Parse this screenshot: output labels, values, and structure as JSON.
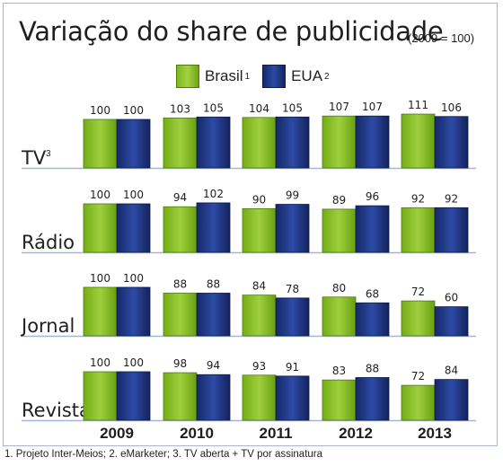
{
  "title": "Variação do share de publicidade",
  "base_note": "(2009 = 100)",
  "legend": [
    {
      "name": "Brasil",
      "sup": "1",
      "color": "#8cc63f"
    },
    {
      "name": "EUA",
      "sup": "2",
      "color": "#1f3a8a"
    }
  ],
  "footnote": "1. Projeto Inter-Meios; 2. eMarketer; 3. TV aberta + TV por assinatura",
  "chart_data": {
    "type": "bar",
    "categories": [
      "2009",
      "2010",
      "2011",
      "2012",
      "2013"
    ],
    "panels": [
      {
        "label": "TV",
        "sup": "3",
        "series": [
          {
            "name": "Brasil",
            "values": [
              100,
              103,
              104,
              107,
              111
            ]
          },
          {
            "name": "EUA",
            "values": [
              100,
              105,
              105,
              107,
              106
            ]
          }
        ]
      },
      {
        "label": "Rádio",
        "sup": "",
        "series": [
          {
            "name": "Brasil",
            "values": [
              100,
              94,
              90,
              89,
              92
            ]
          },
          {
            "name": "EUA",
            "values": [
              100,
              102,
              99,
              96,
              92
            ]
          }
        ]
      },
      {
        "label": "Jornal",
        "sup": "",
        "series": [
          {
            "name": "Brasil",
            "values": [
              100,
              88,
              84,
              80,
              72
            ]
          },
          {
            "name": "EUA",
            "values": [
              100,
              88,
              78,
              68,
              60
            ]
          }
        ]
      },
      {
        "label": "Revista",
        "sup": "",
        "series": [
          {
            "name": "Brasil",
            "values": [
              100,
              98,
              93,
              83,
              72
            ]
          },
          {
            "name": "EUA",
            "values": [
              100,
              94,
              91,
              88,
              84
            ]
          }
        ]
      }
    ],
    "colors": {
      "Brasil": "#8cc63f",
      "EUA": "#1f3a8a"
    }
  }
}
